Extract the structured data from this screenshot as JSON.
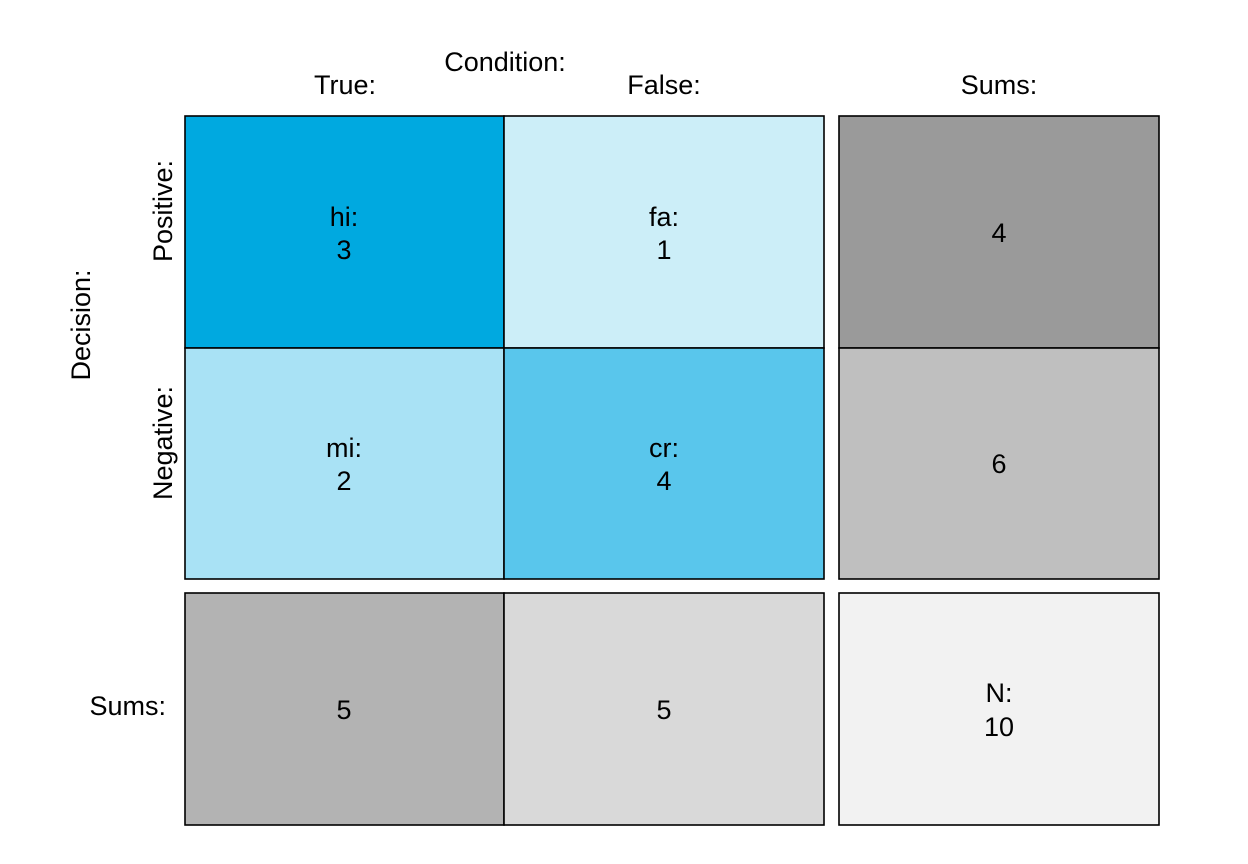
{
  "chart_data": {
    "type": "table",
    "condition_label": "Condition:",
    "decision_label": "Decision:",
    "columns": [
      "True:",
      "False:"
    ],
    "rows": [
      "Positive:",
      "Negative:"
    ],
    "sums_label": "Sums:",
    "cells": [
      [
        {
          "label": "hi:",
          "value": 3,
          "color": "#00A9E0"
        },
        {
          "label": "fa:",
          "value": 1,
          "color": "#CCEEF8"
        }
      ],
      [
        {
          "label": "mi:",
          "value": 2,
          "color": "#A9E2F5"
        },
        {
          "label": "cr:",
          "value": 4,
          "color": "#59C6EC"
        }
      ]
    ],
    "row_sums": [
      {
        "value": 4,
        "color": "#9A9A9A"
      },
      {
        "value": 6,
        "color": "#BFBFBF"
      }
    ],
    "col_sums": [
      {
        "value": 5,
        "color": "#B3B3B3"
      },
      {
        "value": 5,
        "color": "#D9D9D9"
      }
    ],
    "total": {
      "label": "N:",
      "value": 10,
      "color": "#F2F2F2"
    }
  }
}
